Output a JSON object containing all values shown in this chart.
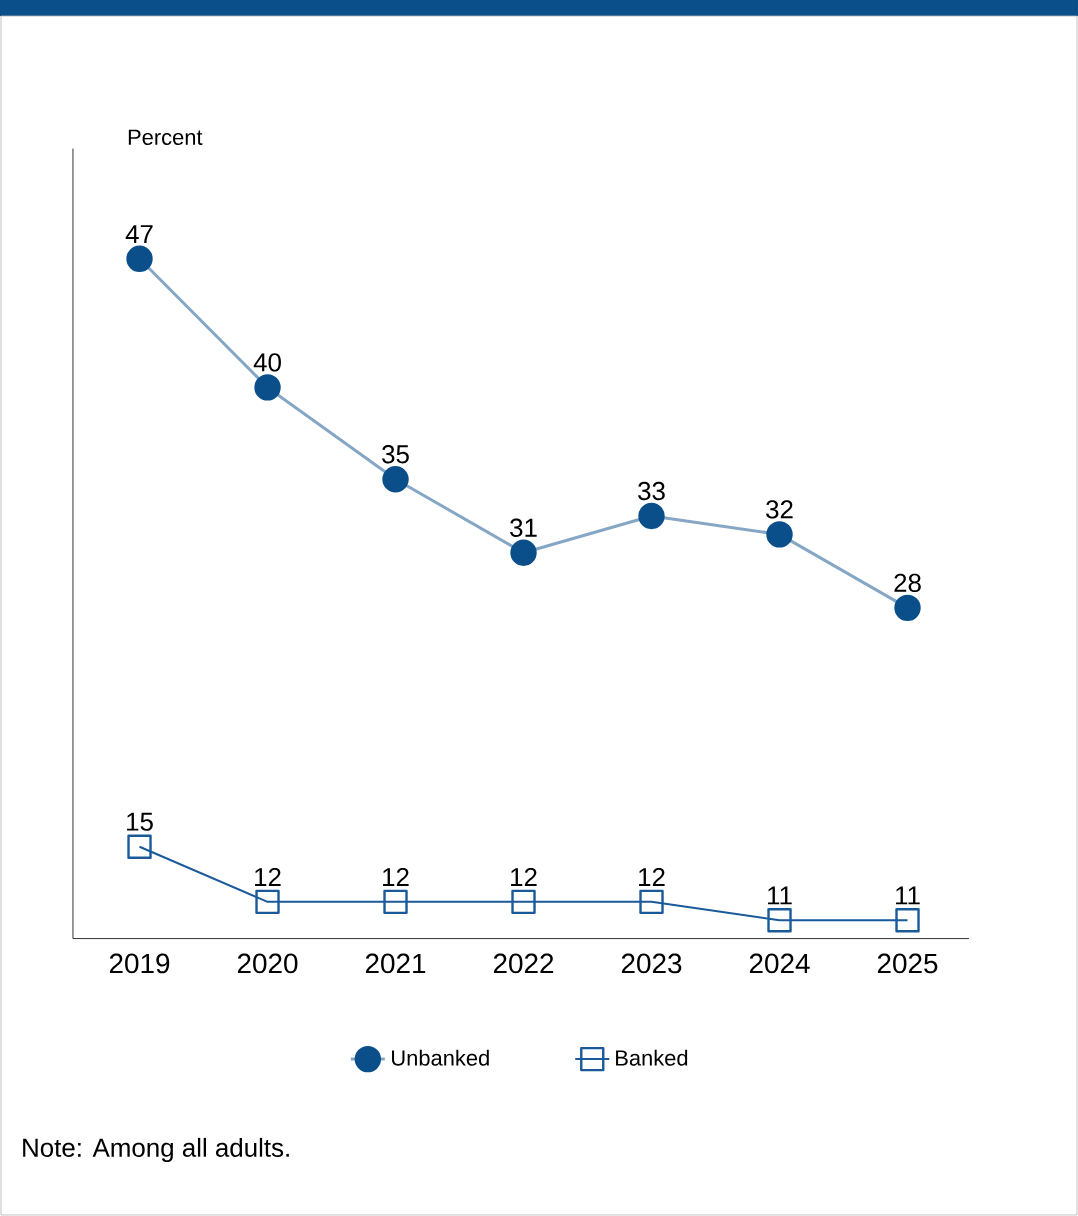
{
  "chart_data": {
    "type": "line",
    "ylabel": "Percent",
    "categories": [
      "2019",
      "2020",
      "2021",
      "2022",
      "2023",
      "2024",
      "2025"
    ],
    "series": [
      {
        "name": "Unbanked",
        "color": "#0b4f8a",
        "marker": "circle",
        "values": [
          47,
          40,
          35,
          31,
          33,
          32,
          28
        ]
      },
      {
        "name": "Banked",
        "color": "#1a5a9a",
        "marker": "square",
        "values": [
          15,
          12,
          12,
          12,
          12,
          11,
          11
        ]
      }
    ],
    "ylim": [
      10,
      53
    ],
    "data_labels": true,
    "legend": "bottom",
    "grid": false,
    "line_style": "solid",
    "annotations": [
      "Note: Among all adults."
    ]
  }
}
